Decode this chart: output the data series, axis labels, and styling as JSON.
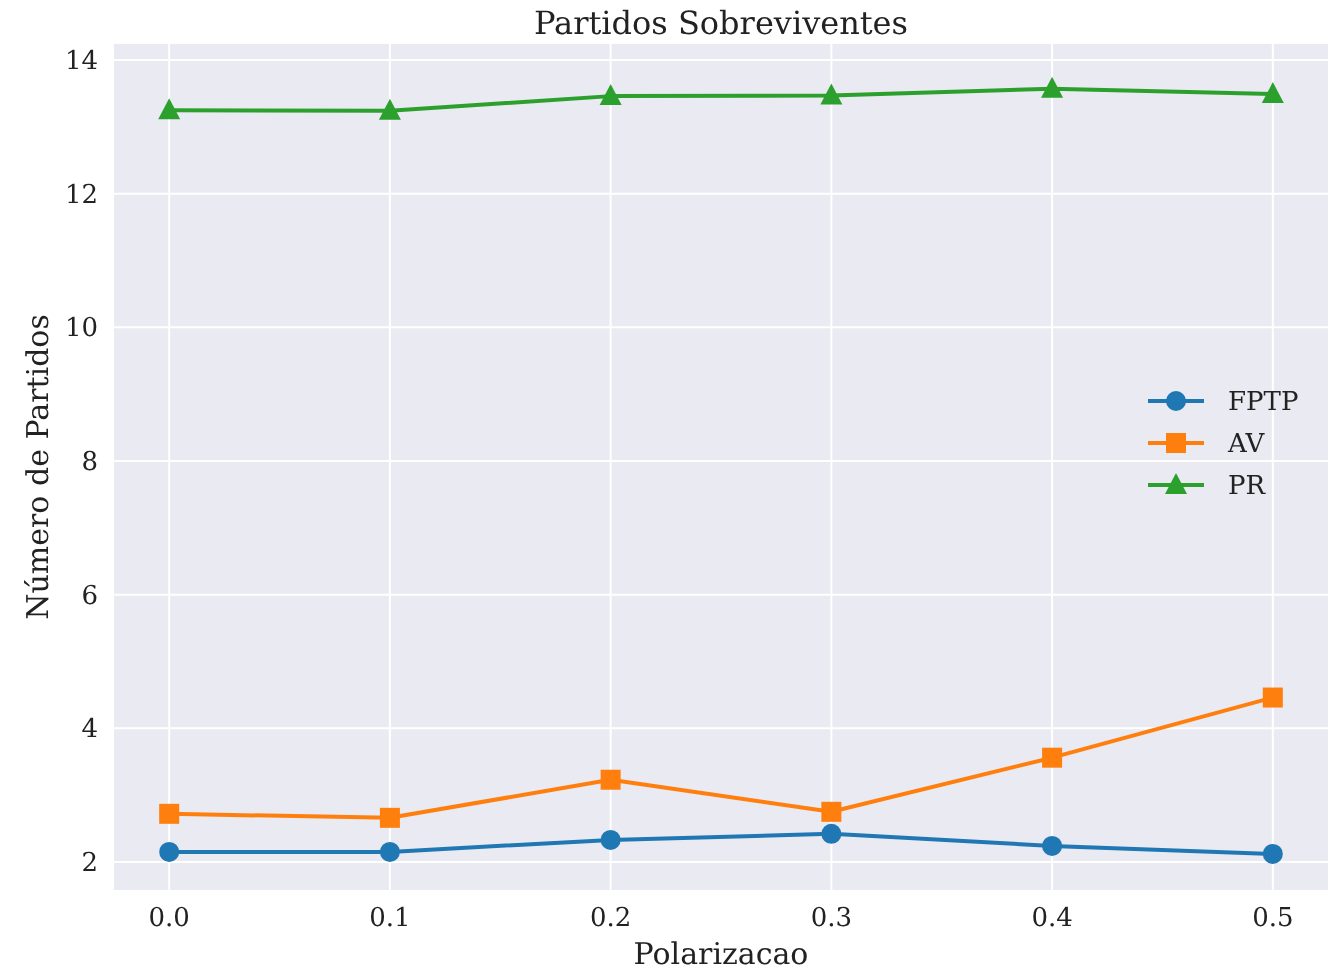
{
  "chart_data": {
    "type": "line",
    "title": "Partidos Sobreviventes",
    "xlabel": "Polarizacao",
    "ylabel": "Número de Partidos",
    "x": [
      0.0,
      0.1,
      0.2,
      0.3,
      0.4,
      0.5
    ],
    "xlim": [
      -0.025,
      0.525
    ],
    "xticks": [
      {
        "value": 0,
        "label": "0.0"
      },
      0.1,
      0.2,
      0.3,
      0.4,
      0.5
    ],
    "ylim": [
      1.58,
      14.24
    ],
    "yticks": [
      2,
      4,
      6,
      8,
      10,
      12,
      14
    ],
    "grid": true,
    "legend": "right",
    "series": [
      {
        "name": "FPTP",
        "color": "#1f77b4",
        "marker": "circle",
        "values": [
          2.15,
          2.15,
          2.33,
          2.42,
          2.24,
          2.12
        ]
      },
      {
        "name": "AV",
        "color": "#ff7f0e",
        "marker": "square",
        "values": [
          2.72,
          2.66,
          3.23,
          2.75,
          3.56,
          4.46
        ]
      },
      {
        "name": "PR",
        "color": "#2ca02c",
        "marker": "triangle",
        "values": [
          13.25,
          13.24,
          13.46,
          13.47,
          13.57,
          13.49
        ]
      }
    ]
  }
}
